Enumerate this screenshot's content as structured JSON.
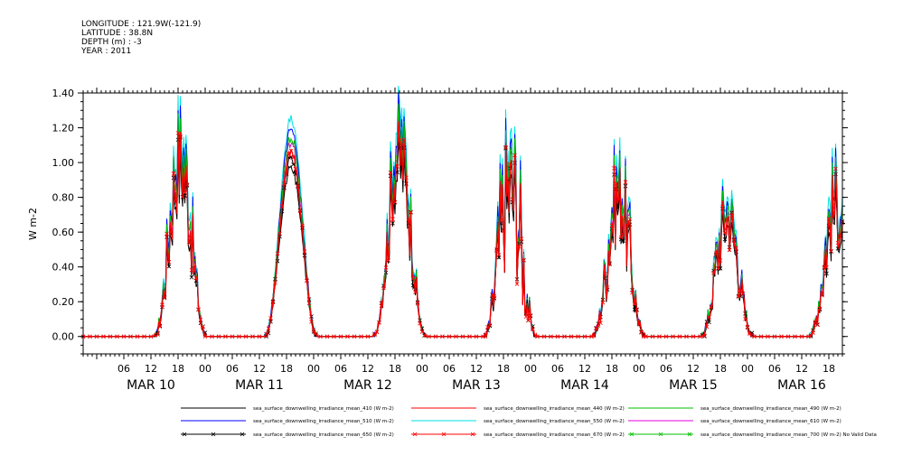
{
  "header": {
    "longitude": "LONGITUDE : 121.9W(-121.9)",
    "latitude": "LATITUDE : 38.8N",
    "depth": "DEPTH (m) : -3",
    "year": "YEAR : 2011"
  },
  "chart_data": {
    "type": "line",
    "title": "",
    "xlabel": "",
    "ylabel": "W m-2",
    "ylim": [
      -0.1,
      1.4
    ],
    "y_ticks": [
      "0.00",
      "0.20",
      "0.40",
      "0.60",
      "0.80",
      "1.00",
      "1.20",
      "1.40"
    ],
    "y_tick_values": [
      0,
      0.2,
      0.4,
      0.6,
      0.8,
      1.0,
      1.2,
      1.4
    ],
    "xlim_hours": [
      0,
      162
    ],
    "hour_tick_labels": [
      {
        "h": 6,
        "label": "06"
      },
      {
        "h": 12,
        "label": "12"
      },
      {
        "h": 18,
        "label": "18"
      },
      {
        "h": 24,
        "label": "00"
      },
      {
        "h": 30,
        "label": "06"
      },
      {
        "h": 36,
        "label": "12"
      },
      {
        "h": 42,
        "label": "18"
      },
      {
        "h": 48,
        "label": "00"
      },
      {
        "h": 54,
        "label": "06"
      },
      {
        "h": 60,
        "label": "12"
      },
      {
        "h": 66,
        "label": "18"
      },
      {
        "h": 72,
        "label": "00"
      },
      {
        "h": 78,
        "label": "06"
      },
      {
        "h": 84,
        "label": "12"
      },
      {
        "h": 90,
        "label": "18"
      },
      {
        "h": 96,
        "label": "00"
      },
      {
        "h": 102,
        "label": "06"
      },
      {
        "h": 108,
        "label": "12"
      },
      {
        "h": 114,
        "label": "18"
      },
      {
        "h": 120,
        "label": "00"
      },
      {
        "h": 126,
        "label": "06"
      },
      {
        "h": 132,
        "label": "12"
      },
      {
        "h": 138,
        "label": "18"
      },
      {
        "h": 144,
        "label": "00"
      },
      {
        "h": 150,
        "label": "06"
      },
      {
        "h": 156,
        "label": "12"
      },
      {
        "h": 162,
        "label": "18"
      }
    ],
    "day_labels": [
      {
        "h": 12,
        "label": "MAR 10"
      },
      {
        "h": 36,
        "label": "MAR 11"
      },
      {
        "h": 60,
        "label": "MAR 12"
      },
      {
        "h": 84,
        "label": "MAR 13"
      },
      {
        "h": 108,
        "label": "MAR 14"
      },
      {
        "h": 132,
        "label": "MAR 15"
      },
      {
        "h": 156,
        "label": "MAR 16"
      }
    ],
    "hour_tick_labels_note": "",
    "day_peaks": [
      {
        "center_h": 18.5,
        "peak": 1.0,
        "noise": 0.25
      },
      {
        "center_h": 43,
        "peak": 1.06,
        "noise": 0.02
      },
      {
        "center_h": 67,
        "peak": 1.05,
        "noise": 0.2
      },
      {
        "center_h": 91.5,
        "peak": 0.85,
        "noise": 0.45
      },
      {
        "center_h": 115.5,
        "peak": 0.8,
        "noise": 0.3
      },
      {
        "center_h": 139.5,
        "peak": 0.68,
        "noise": 0.25
      },
      {
        "center_h": 163.5,
        "peak": 0.75,
        "noise": 0.3
      }
    ],
    "series": [
      {
        "name": "sea_surface_downwelling_irradiance_mean_410 (W m-2)",
        "color": "#000000",
        "scale": 0.92,
        "marker": false
      },
      {
        "name": "sea_surface_downwelling_irradiance_mean_440 (W m-2)",
        "color": "#ff0000",
        "scale": 1.0,
        "marker": false
      },
      {
        "name": "sea_surface_downwelling_irradiance_mean_490 (W m-2)",
        "color": "#00c000",
        "scale": 1.08,
        "marker": false
      },
      {
        "name": "sea_surface_downwelling_irradiance_mean_510 (W m-2)",
        "color": "#0000ff",
        "scale": 1.12,
        "marker": false
      },
      {
        "name": "sea_surface_downwelling_irradiance_mean_550 (W m-2)",
        "color": "#00e0e0",
        "scale": 1.18,
        "marker": false
      },
      {
        "name": "sea_surface_downwelling_irradiance_mean_610 (W m-2)",
        "color": "#e000e0",
        "scale": 1.05,
        "marker": false
      },
      {
        "name": "sea_surface_downwelling_irradiance_mean_650 (W m-2)",
        "color": "#000000",
        "scale": 0.97,
        "marker": true
      },
      {
        "name": "sea_surface_downwelling_irradiance_mean_670 (W m-2)",
        "color": "#ff0000",
        "scale": 0.99,
        "marker": true
      },
      {
        "name": "sea_surface_downwelling_irradiance_mean_700 (W m-2) No Valid Data",
        "color": "#00c000",
        "scale": 0,
        "marker": true
      }
    ],
    "grid": false,
    "legend_position": "bottom"
  }
}
